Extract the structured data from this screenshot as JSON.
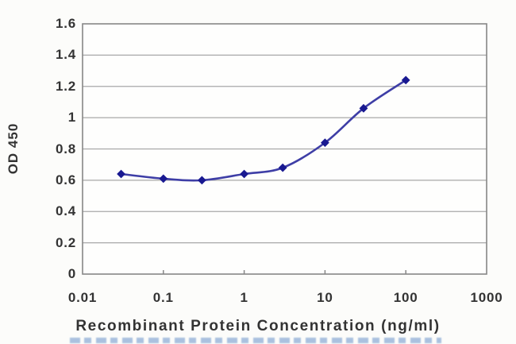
{
  "chart_data": {
    "type": "line",
    "x_scale": "log",
    "x": [
      0.03,
      0.1,
      0.3,
      1,
      3,
      10,
      30,
      100
    ],
    "series": [
      {
        "name": "OD 450",
        "values": [
          0.64,
          0.61,
          0.6,
          0.64,
          0.68,
          0.84,
          1.06,
          1.24
        ]
      }
    ],
    "title": "",
    "xlabel": "Recombinant Protein Concentration (ng/ml)",
    "ylabel": "OD 450",
    "xlim": [
      0.01,
      1000
    ],
    "ylim": [
      0,
      1.6
    ],
    "x_ticks": [
      0.01,
      0.1,
      1,
      10,
      100,
      1000
    ],
    "x_tick_labels": [
      "0.01",
      "0.1",
      "1",
      "10",
      "100",
      "1000"
    ],
    "y_ticks": [
      0,
      0.2,
      0.4,
      0.6,
      0.8,
      1,
      1.2,
      1.4,
      1.6
    ],
    "y_tick_labels": [
      "0",
      "0.2",
      "0.4",
      "0.6",
      "0.8",
      "1",
      "1.2",
      "1.4",
      "1.6"
    ],
    "grid": "horizontal-only",
    "legend": "none",
    "marker": "diamond",
    "line_color": "#3e3ea6",
    "marker_color": "#191991",
    "axis_border_color": "#868686",
    "grid_color": "#a8a8a8",
    "tick_mark_color": "#868686",
    "text_color": "#333333",
    "plot_bg_color": "#fefefd",
    "figure_bg_color": "#fcfcfa",
    "footer_strip_color": "#8aaad4"
  }
}
